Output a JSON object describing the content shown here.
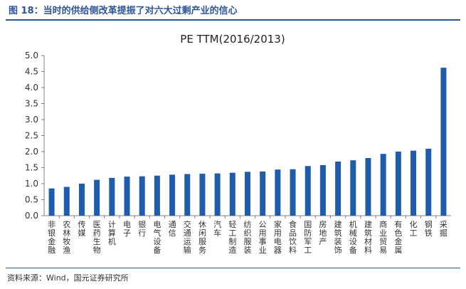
{
  "figure": {
    "title": "图 18：当时的供给侧改革提振了对六大过剩产业的信心",
    "source": "资料来源：Wind，国元证券研究所"
  },
  "colors": {
    "bar": "#1f5cab",
    "title": "#2f5597",
    "axis": "#808080",
    "text": "#333333"
  },
  "chart_data": {
    "type": "bar",
    "title": "PE TTM(2016/2013)",
    "xlabel": "",
    "ylabel": "",
    "ylim": [
      0,
      5
    ],
    "yticks": [
      "0.0",
      "0.5",
      "1.0",
      "1.5",
      "2.0",
      "2.5",
      "3.0",
      "3.5",
      "4.0",
      "4.5",
      "5.0"
    ],
    "grid": false,
    "legend": "none",
    "categories": [
      "非银金融",
      "农林牧渔",
      "传媒",
      "医药生物",
      "计算机",
      "电子",
      "银行",
      "电气设备",
      "通信",
      "交通运输",
      "休闲服务",
      "汽车",
      "轻工制造",
      "纺织服装",
      "公用事业",
      "家用电器",
      "食品饮料",
      "国防军工",
      "房地产",
      "建筑装饰",
      "机械设备",
      "建筑材料",
      "商业贸易",
      "有色金属",
      "化工",
      "钢铁",
      "采掘"
    ],
    "values": [
      0.85,
      0.9,
      1.0,
      1.12,
      1.18,
      1.22,
      1.23,
      1.25,
      1.28,
      1.3,
      1.31,
      1.32,
      1.34,
      1.37,
      1.38,
      1.44,
      1.45,
      1.55,
      1.58,
      1.69,
      1.73,
      1.8,
      1.93,
      2.0,
      2.03,
      2.09,
      4.62
    ]
  }
}
